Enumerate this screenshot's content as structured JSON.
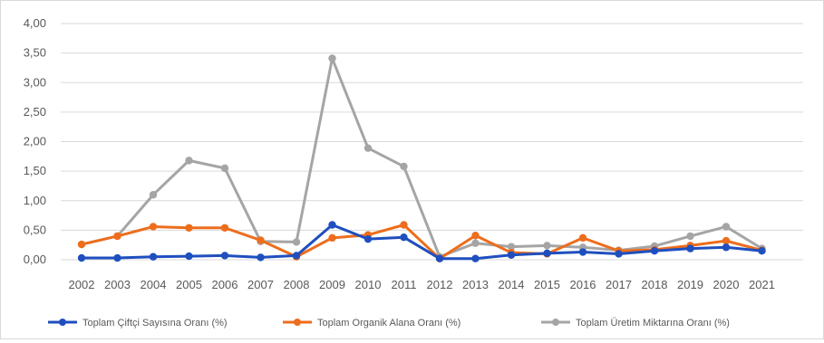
{
  "chart_data": {
    "type": "line",
    "x": [
      "2002",
      "2003",
      "2004",
      "2005",
      "2006",
      "2007",
      "2008",
      "2009",
      "2010",
      "2011",
      "2012",
      "2013",
      "2014",
      "2015",
      "2016",
      "2017",
      "2018",
      "2019",
      "2020",
      "2021"
    ],
    "ylim": [
      0,
      4
    ],
    "yticks": [
      "0,00",
      "0,50",
      "1,00",
      "1,50",
      "2,00",
      "2,50",
      "3,00",
      "3,50",
      "4,00"
    ],
    "grid": true,
    "legend_position": "bottom",
    "series": [
      {
        "name": "Toplam Çiftçi Sayısına Oranı (%)",
        "color": "#1f4fbf",
        "values": [
          0.03,
          0.03,
          0.05,
          0.06,
          0.07,
          0.04,
          0.07,
          0.59,
          0.35,
          0.38,
          0.02,
          0.02,
          0.08,
          0.11,
          0.13,
          0.1,
          0.15,
          0.19,
          0.21,
          0.15
        ]
      },
      {
        "name": "Toplam Organik Alana Oranı (%)",
        "color": "#ed6d1c",
        "values": [
          0.26,
          0.4,
          0.56,
          0.54,
          0.54,
          0.33,
          0.05,
          0.37,
          0.42,
          0.59,
          0.02,
          0.41,
          0.12,
          0.1,
          0.37,
          0.15,
          0.17,
          0.24,
          0.32,
          0.16
        ]
      },
      {
        "name": "Toplam Üretim Miktarına Oranı (%)",
        "color": "#a5a5a5",
        "values": [
          0.26,
          0.4,
          1.1,
          1.68,
          1.55,
          0.31,
          0.3,
          3.41,
          1.89,
          1.58,
          0.05,
          0.28,
          0.22,
          0.24,
          0.21,
          0.16,
          0.23,
          0.4,
          0.56,
          0.19
        ]
      }
    ]
  }
}
